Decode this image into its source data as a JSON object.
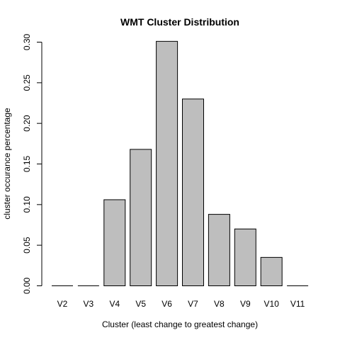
{
  "chart_data": {
    "type": "bar",
    "title": "WMT Cluster Distribution",
    "xlabel": "Cluster (least change to greatest change)",
    "ylabel": "cluster occurance percentage",
    "categories": [
      "V2",
      "V3",
      "V4",
      "V5",
      "V6",
      "V7",
      "V8",
      "V9",
      "V10",
      "V11"
    ],
    "values": [
      0.0,
      0.0,
      0.106,
      0.168,
      0.301,
      0.23,
      0.088,
      0.07,
      0.035,
      0.0
    ],
    "ylim": [
      0,
      0.3
    ],
    "yticks": [
      0.0,
      0.05,
      0.1,
      0.15,
      0.2,
      0.25,
      0.3
    ],
    "ytick_labels": [
      "0.00",
      "0.05",
      "0.10",
      "0.15",
      "0.20",
      "0.25",
      "0.30"
    ],
    "bar_color": "#bebebe",
    "grid": false,
    "legend": "none"
  }
}
